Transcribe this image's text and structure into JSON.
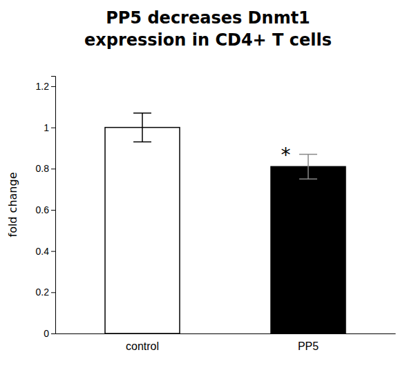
{
  "chart_data": {
    "type": "bar",
    "title": [
      "PP5 decreases Dnmt1",
      "expression in CD4+ T cells"
    ],
    "categories": [
      "control",
      "PP5"
    ],
    "values": [
      1.0,
      0.81
    ],
    "errors": [
      0.07,
      0.06
    ],
    "colors": [
      "#ffffff",
      "#000000"
    ],
    "ylabel": "fold change",
    "ylim": [
      0,
      1.25
    ],
    "yticks": [
      0,
      0.2,
      0.4,
      0.6,
      0.8,
      1,
      1.2
    ],
    "annotations": [
      {
        "text": "*",
        "x": "PP5",
        "y": 0.88
      }
    ],
    "grid": false
  }
}
